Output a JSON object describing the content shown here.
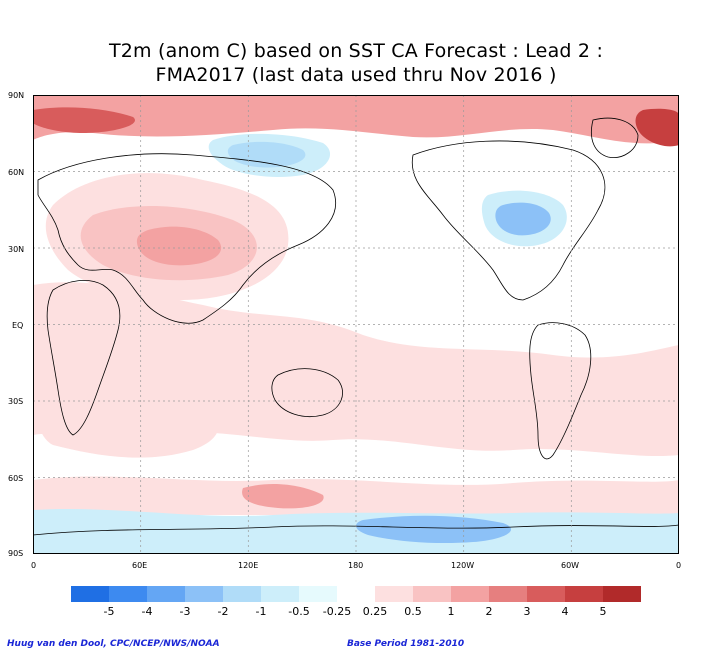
{
  "title": {
    "line1": "T2m (anom C) based on SST CA Forecast : Lead 2 :",
    "line2": "FMA2017 (last data used thru Nov 2016 )"
  },
  "map": {
    "lat_labels": [
      "90N",
      "60N",
      "30N",
      "EQ",
      "30S",
      "60S",
      "90S"
    ],
    "lon_labels": [
      "0",
      "60E",
      "120E",
      "180",
      "120W",
      "60W",
      "0"
    ],
    "grid_color": "#9a9a9a",
    "coast_color": "#000000"
  },
  "colorbar": {
    "labels": [
      "-5",
      "-4",
      "-3",
      "-2",
      "-1",
      "-0.5",
      "-0.25",
      "0.25",
      "0.5",
      "1",
      "2",
      "3",
      "4",
      "5"
    ],
    "colors": [
      "#1f6fe4",
      "#3d8af0",
      "#64a6f4",
      "#8cc1f7",
      "#b0dcf8",
      "#cdeefa",
      "#e6fafd",
      "#ffffff",
      "#fde0e0",
      "#f9c3c3",
      "#f3a2a2",
      "#e67f7f",
      "#d85c5c",
      "#c63f3f",
      "#b12a2a"
    ]
  },
  "footer": {
    "credit": "Huug van den Dool, CPC/NCEP/NWS/NOAA",
    "base_period": "Base Period 1981-2010"
  }
}
